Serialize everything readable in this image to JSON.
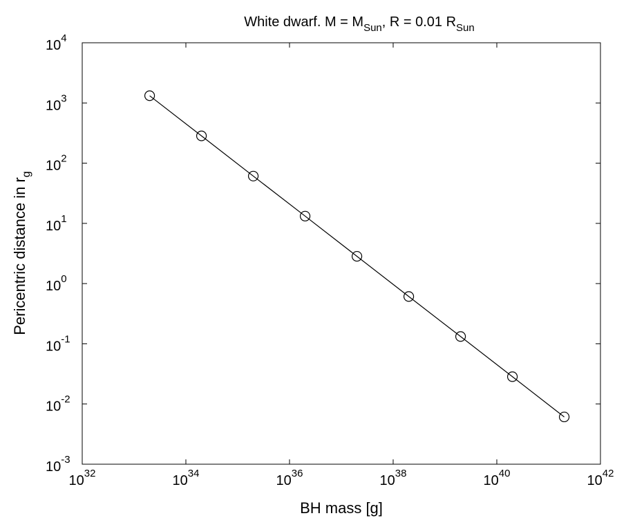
{
  "chart_data": {
    "type": "line",
    "title": {
      "main": "White dwarf. M = M",
      "sub1": "Sun",
      "mid": ", R = 0.01 R",
      "sub2": "Sun"
    },
    "xlabel": "BH mass [g]",
    "ylabel": {
      "main": "Pericentric distance in r",
      "sub": "g"
    },
    "x_scale": "log",
    "y_scale": "log",
    "xlim": [
      1e+32,
      1e+42
    ],
    "ylim": [
      0.001,
      10000
    ],
    "x_ticks": [
      {
        "base": "10",
        "exp": "32",
        "value": 1e+32
      },
      {
        "base": "10",
        "exp": "34",
        "value": 1e+34
      },
      {
        "base": "10",
        "exp": "36",
        "value": 1e+36
      },
      {
        "base": "10",
        "exp": "38",
        "value": 1e+38
      },
      {
        "base": "10",
        "exp": "40",
        "value": 1e+40
      },
      {
        "base": "10",
        "exp": "42",
        "value": 1e+42
      }
    ],
    "y_ticks": [
      {
        "base": "10",
        "exp": "-3",
        "value": 0.001
      },
      {
        "base": "10",
        "exp": "-2",
        "value": 0.01
      },
      {
        "base": "10",
        "exp": "-1",
        "value": 0.1
      },
      {
        "base": "10",
        "exp": "0",
        "value": 1
      },
      {
        "base": "10",
        "exp": "1",
        "value": 10
      },
      {
        "base": "10",
        "exp": "2",
        "value": 100
      },
      {
        "base": "10",
        "exp": "3",
        "value": 1000
      },
      {
        "base": "10",
        "exp": "4",
        "value": 10000
      }
    ],
    "grid": false,
    "marker": "open-circle",
    "line_color": "#000000",
    "x": [
      2e+33,
      2e+34,
      2e+35,
      2e+36,
      2e+37,
      2e+38,
      2e+39,
      2e+40,
      2e+41
    ],
    "y": [
      1320,
      284,
      61,
      13.2,
      2.84,
      0.61,
      0.132,
      0.0284,
      0.0061
    ]
  }
}
